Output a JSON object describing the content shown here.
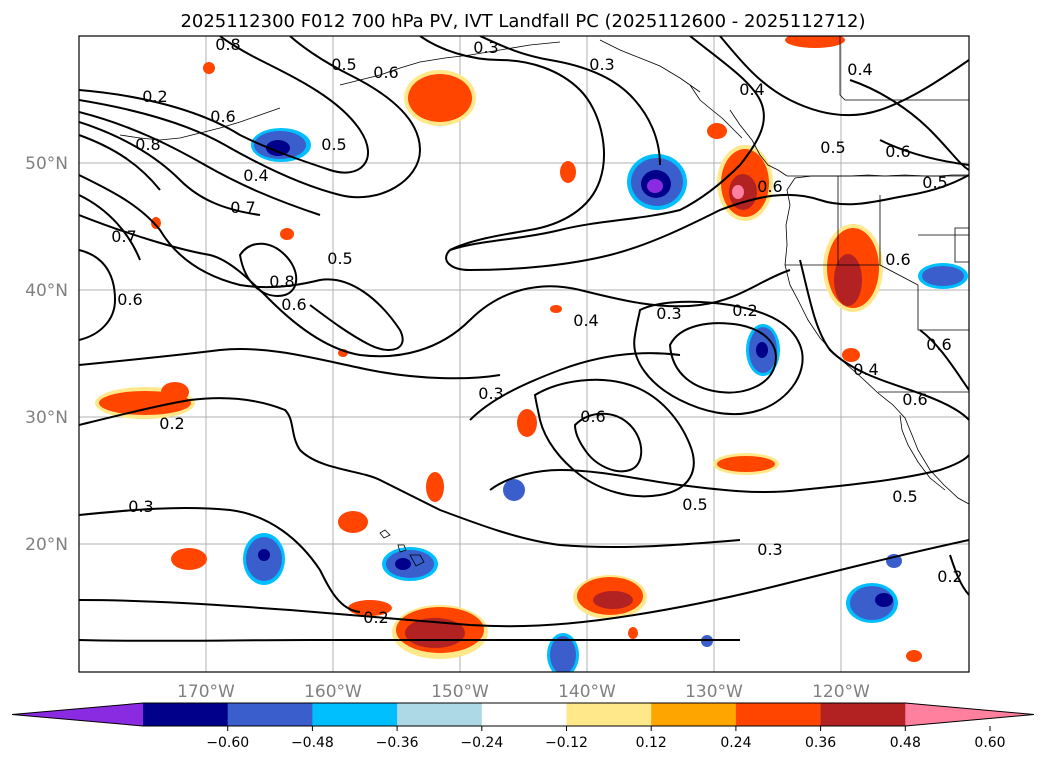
{
  "title": "2025112300 F012 700 hPa PV, IVT Landfall PC (2025112600 - 2025112712)",
  "map": {
    "lon_range": [
      -180,
      -110
    ],
    "lat_range": [
      10,
      60
    ],
    "lat_ticks": [
      {
        "value": 50,
        "label": "50°N"
      },
      {
        "value": 40,
        "label": "40°N"
      },
      {
        "value": 30,
        "label": "30°N"
      },
      {
        "value": 20,
        "label": "20°N"
      }
    ],
    "lon_ticks": [
      {
        "value": -170,
        "label": "170°W"
      },
      {
        "value": -160,
        "label": "160°W"
      },
      {
        "value": -150,
        "label": "150°W"
      },
      {
        "value": -140,
        "label": "140°W"
      },
      {
        "value": -130,
        "label": "130°W"
      },
      {
        "value": -120,
        "label": "120°W"
      }
    ],
    "grid": true
  },
  "contour_labels": [
    "0.2",
    "0.8",
    "0.5",
    "0.7",
    "0.8",
    "0.6",
    "0.3",
    "0.3",
    "0.6",
    "0.4",
    "0.4",
    "0.5",
    "0.6",
    "0.5",
    "0.5",
    "0.4",
    "0.6",
    "0.7",
    "0.8",
    "0.6",
    "0.5",
    "0.6",
    "0.4",
    "0.3",
    "0.2",
    "0.3",
    "0.6",
    "0.2",
    "0.3",
    "0.5",
    "0.3",
    "0.2",
    "0.6",
    "0.4",
    "0.6",
    "0.6",
    "0.5",
    "0.2"
  ],
  "colorbar": {
    "ticks": [
      "−0.60",
      "−0.48",
      "−0.36",
      "−0.24",
      "−0.12",
      "0.12",
      "0.24",
      "0.36",
      "0.48",
      "0.60"
    ],
    "colors": [
      "#8a2be2",
      "#00008b",
      "#3a5fcd",
      "#00bfff",
      "#add8e6",
      "#ffffff",
      "#ffe88a",
      "#ffa500",
      "#ff4500",
      "#b22222",
      "#ff7f9f"
    ]
  }
}
